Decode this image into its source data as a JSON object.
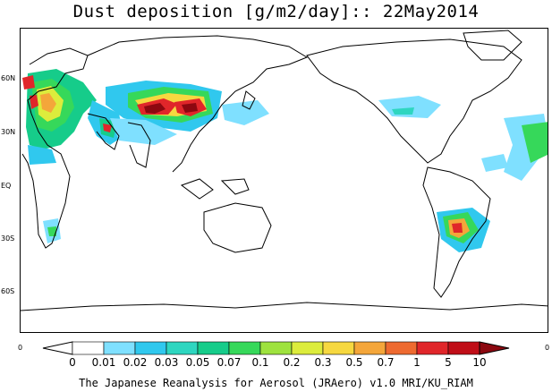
{
  "title": "Dust deposition [g/m2/day]:: 22May2014",
  "lat_labels": [
    "60N",
    "30N",
    "EQ",
    "30S",
    "60S"
  ],
  "edge_labels": {
    "left": "0",
    "right": "0"
  },
  "colorbar": {
    "ticks": [
      "0",
      "0.01",
      "0.02",
      "0.03",
      "0.05",
      "0.07",
      "0.1",
      "0.2",
      "0.3",
      "0.5",
      "0.7",
      "1",
      "5",
      "10"
    ],
    "colors": [
      "#ffffff",
      "#7fe0ff",
      "#30c8ee",
      "#2ed6c0",
      "#16cc8a",
      "#36d85a",
      "#9ee23e",
      "#dcec3c",
      "#f6d840",
      "#f4a63a",
      "#ee6a30",
      "#e0262a",
      "#c00e18",
      "#8c0810"
    ]
  },
  "footer": "The Japanese Reanalysis for Aerosol (JRAero) v1.0 MRI/KU_RIAM"
}
